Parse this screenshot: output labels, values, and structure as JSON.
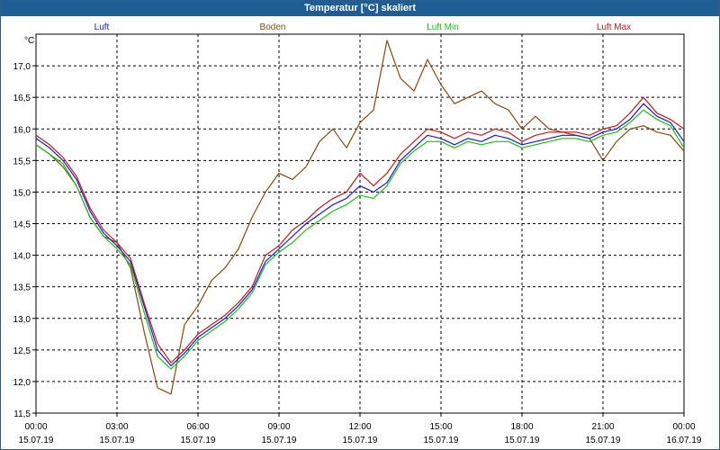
{
  "window": {
    "title": "Temperatur [°C] skaliert"
  },
  "chart_data": {
    "type": "line",
    "ylabel": "°C",
    "ylim": [
      11.5,
      17.5
    ],
    "yticks": [
      "11,5",
      "12,0",
      "12,5",
      "13,0",
      "13,5",
      "14,0",
      "14,5",
      "15,0",
      "15,5",
      "16,0",
      "16,5",
      "17,0"
    ],
    "ytick_values": [
      11.5,
      12.0,
      12.5,
      13.0,
      13.5,
      14.0,
      14.5,
      15.0,
      15.5,
      16.0,
      16.5,
      17.0
    ],
    "xlim": [
      0,
      24
    ],
    "xticks": [
      {
        "time": "00:00",
        "date": "15.07.19"
      },
      {
        "time": "03:00",
        "date": "15.07.19"
      },
      {
        "time": "06:00",
        "date": "15.07.19"
      },
      {
        "time": "09:00",
        "date": "15.07.19"
      },
      {
        "time": "12:00",
        "date": "15.07.19"
      },
      {
        "time": "15:00",
        "date": "15.07.19"
      },
      {
        "time": "18:00",
        "date": "15.07.19"
      },
      {
        "time": "21:00",
        "date": "15.07.19"
      },
      {
        "time": "00:00",
        "date": "16.07.19"
      }
    ],
    "xtick_values": [
      0,
      3,
      6,
      9,
      12,
      15,
      18,
      21,
      24
    ],
    "grid": true,
    "legend_position": "top",
    "x": [
      0,
      0.5,
      1,
      1.5,
      2,
      2.5,
      3,
      3.5,
      4,
      4.5,
      5,
      5.5,
      6,
      6.5,
      7,
      7.5,
      8,
      8.5,
      9,
      9.5,
      10,
      10.5,
      11,
      11.5,
      12,
      12.5,
      13,
      13.5,
      14,
      14.5,
      15,
      15.5,
      16,
      16.5,
      17,
      17.5,
      18,
      18.5,
      19,
      19.5,
      20,
      20.5,
      21,
      21.5,
      22,
      22.5,
      23,
      23.5,
      24
    ],
    "series": [
      {
        "name": "Luft",
        "color": "#1a1ad6",
        "values": [
          15.85,
          15.7,
          15.5,
          15.2,
          14.7,
          14.35,
          14.15,
          13.9,
          13.2,
          12.5,
          12.25,
          12.45,
          12.7,
          12.85,
          13.0,
          13.2,
          13.45,
          13.9,
          14.1,
          14.3,
          14.5,
          14.65,
          14.8,
          14.9,
          15.1,
          15.0,
          15.15,
          15.5,
          15.7,
          15.9,
          15.85,
          15.75,
          15.85,
          15.8,
          15.9,
          15.85,
          15.75,
          15.8,
          15.85,
          15.9,
          15.9,
          15.85,
          15.95,
          16.0,
          16.15,
          16.4,
          16.2,
          16.1,
          15.8
        ]
      },
      {
        "name": "Boden",
        "color": "#8b4a0a",
        "values": [
          15.75,
          15.6,
          15.4,
          15.1,
          14.6,
          14.3,
          14.2,
          13.8,
          12.8,
          11.9,
          11.8,
          12.9,
          13.2,
          13.6,
          13.8,
          14.1,
          14.6,
          15.0,
          15.3,
          15.2,
          15.4,
          15.8,
          16.0,
          15.7,
          16.1,
          16.3,
          17.4,
          16.8,
          16.6,
          17.1,
          16.7,
          16.4,
          16.5,
          16.6,
          16.4,
          16.3,
          16.0,
          16.2,
          16.0,
          15.95,
          15.9,
          15.85,
          15.5,
          15.8,
          16.0,
          16.05,
          15.95,
          15.9,
          15.65
        ]
      },
      {
        "name": "Luft Min",
        "color": "#19c019",
        "values": [
          15.75,
          15.6,
          15.45,
          15.1,
          14.6,
          14.3,
          14.1,
          13.85,
          13.1,
          12.4,
          12.2,
          12.4,
          12.65,
          12.8,
          12.95,
          13.15,
          13.4,
          13.85,
          14.05,
          14.2,
          14.4,
          14.55,
          14.7,
          14.8,
          14.95,
          14.9,
          15.1,
          15.45,
          15.65,
          15.8,
          15.8,
          15.7,
          15.8,
          15.75,
          15.8,
          15.8,
          15.7,
          15.75,
          15.8,
          15.85,
          15.85,
          15.8,
          15.9,
          15.95,
          16.1,
          16.3,
          16.15,
          16.05,
          15.7
        ]
      },
      {
        "name": "Luft Max",
        "color": "#d01818",
        "values": [
          15.9,
          15.75,
          15.55,
          15.25,
          14.75,
          14.4,
          14.2,
          13.95,
          13.25,
          12.6,
          12.3,
          12.5,
          12.75,
          12.9,
          13.05,
          13.25,
          13.5,
          14.0,
          14.15,
          14.4,
          14.55,
          14.75,
          14.9,
          15.0,
          15.3,
          15.1,
          15.3,
          15.6,
          15.8,
          16.0,
          15.95,
          15.85,
          15.95,
          15.9,
          16.0,
          15.95,
          15.8,
          15.9,
          15.95,
          15.95,
          15.95,
          15.9,
          16.0,
          16.05,
          16.25,
          16.5,
          16.25,
          16.15,
          16.0
        ]
      }
    ]
  }
}
